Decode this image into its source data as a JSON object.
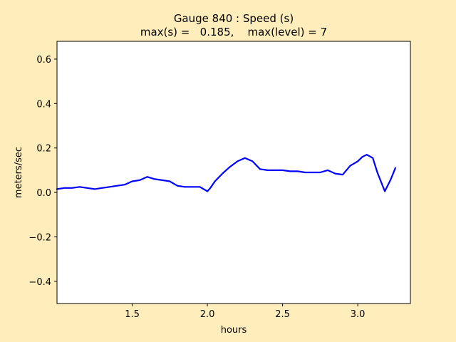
{
  "chart_data": {
    "type": "line",
    "title_line1": "Gauge 840 : Speed (s)",
    "title_line2": "max(s) =   0.185,    max(level) = 7",
    "xlabel": "hours",
    "ylabel": "meters/sec",
    "xlim": [
      1.0,
      3.35
    ],
    "ylim": [
      -0.5,
      0.68
    ],
    "xticks": [
      1.5,
      2.0,
      2.5,
      3.0
    ],
    "xtick_labels": [
      "1.5",
      "2.0",
      "2.5",
      "3.0"
    ],
    "yticks": [
      -0.4,
      -0.2,
      0.0,
      0.2,
      0.4,
      0.6
    ],
    "ytick_labels": [
      "−0.4",
      "−0.2",
      "0.0",
      "0.2",
      "0.4",
      "0.6"
    ],
    "grid": false,
    "series": [
      {
        "color": "#0000ff",
        "x": [
          1.0,
          1.05,
          1.1,
          1.15,
          1.2,
          1.25,
          1.3,
          1.35,
          1.4,
          1.45,
          1.5,
          1.55,
          1.6,
          1.65,
          1.7,
          1.75,
          1.8,
          1.85,
          1.9,
          1.95,
          2.0,
          2.02,
          2.05,
          2.1,
          2.15,
          2.2,
          2.25,
          2.3,
          2.35,
          2.4,
          2.45,
          2.5,
          2.55,
          2.6,
          2.65,
          2.7,
          2.75,
          2.8,
          2.85,
          2.9,
          2.95,
          3.0,
          3.03,
          3.06,
          3.1,
          3.13,
          3.18,
          3.22,
          3.25
        ],
        "y": [
          0.015,
          0.02,
          0.02,
          0.025,
          0.02,
          0.015,
          0.02,
          0.025,
          0.03,
          0.035,
          0.05,
          0.055,
          0.07,
          0.06,
          0.055,
          0.05,
          0.03,
          0.025,
          0.025,
          0.025,
          0.005,
          0.02,
          0.05,
          0.085,
          0.115,
          0.14,
          0.155,
          0.14,
          0.105,
          0.1,
          0.1,
          0.1,
          0.095,
          0.095,
          0.09,
          0.09,
          0.09,
          0.1,
          0.085,
          0.08,
          0.12,
          0.14,
          0.16,
          0.17,
          0.155,
          0.09,
          0.005,
          0.06,
          0.11
        ]
      }
    ]
  }
}
